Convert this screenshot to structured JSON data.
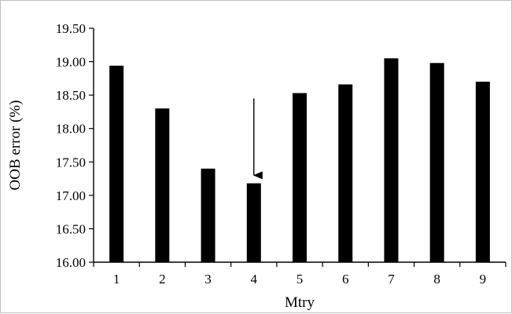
{
  "chart_data": {
    "type": "bar",
    "xlabel": "Mtry",
    "ylabel": "OOB error (%)",
    "categories": [
      "1",
      "2",
      "3",
      "4",
      "5",
      "6",
      "7",
      "8",
      "9"
    ],
    "values": [
      18.94,
      18.3,
      17.4,
      17.18,
      18.53,
      18.66,
      19.05,
      18.98,
      18.7
    ],
    "ylim": [
      16.0,
      19.5
    ],
    "yticks": [
      "16.00",
      "16.50",
      "17.00",
      "17.50",
      "18.00",
      "18.50",
      "19.00",
      "19.50"
    ],
    "grid": false,
    "legend": "none",
    "bar_color": "#000000",
    "annotation": {
      "type": "arrow",
      "points_to_category": "4",
      "from_value": 18.45,
      "to_value": 17.3
    }
  }
}
